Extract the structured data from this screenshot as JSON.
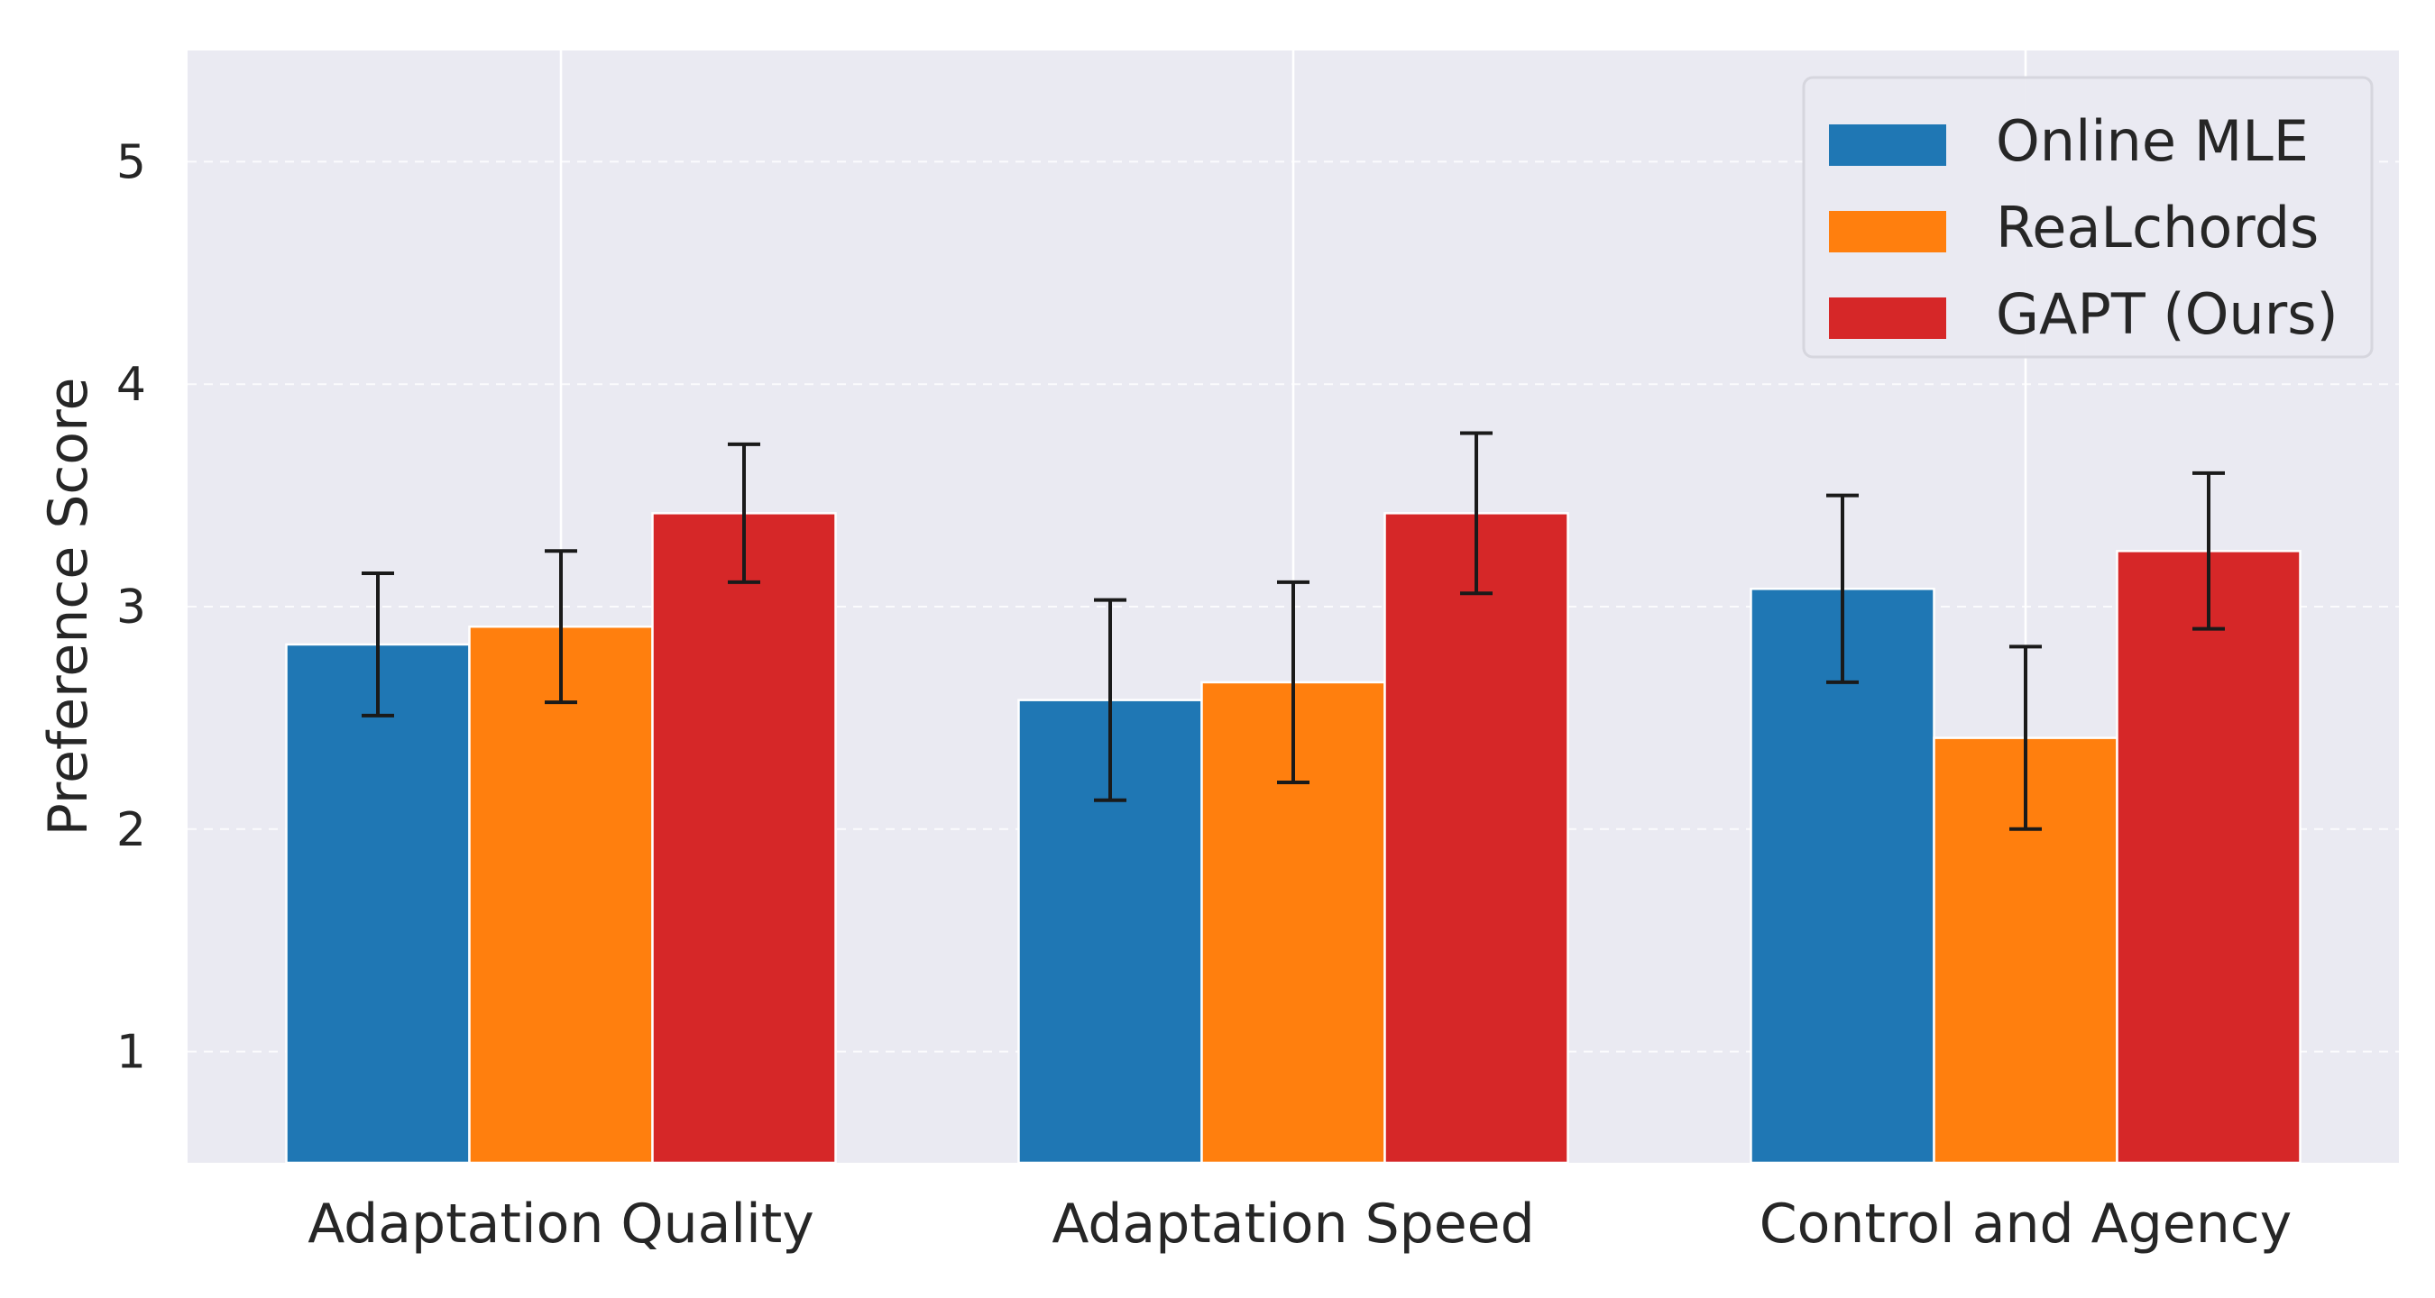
{
  "chart_data": {
    "type": "bar",
    "title": "",
    "xlabel": "",
    "ylabel": "Preference Score",
    "ylim": [
      0.5,
      5.5
    ],
    "yticks": [
      1,
      2,
      3,
      4,
      5
    ],
    "grid": true,
    "legend_placement": "top-right",
    "categories": [
      "Adaptation Quality",
      "Adaptation Speed",
      "Control and Agency"
    ],
    "series": [
      {
        "name": "Online MLE",
        "color": "#1f77b4",
        "values": [
          2.83,
          2.58,
          3.08
        ],
        "errors": [
          0.32,
          0.45,
          0.42
        ]
      },
      {
        "name": "ReaLchords",
        "color": "#ff7f0e",
        "values": [
          2.91,
          2.66,
          2.41
        ],
        "errors": [
          0.34,
          0.45,
          0.41
        ]
      },
      {
        "name": "GAPT (Ours)",
        "color": "#d62728",
        "values": [
          3.42,
          3.42,
          3.25
        ],
        "errors": [
          0.31,
          0.36,
          0.35
        ]
      }
    ]
  }
}
